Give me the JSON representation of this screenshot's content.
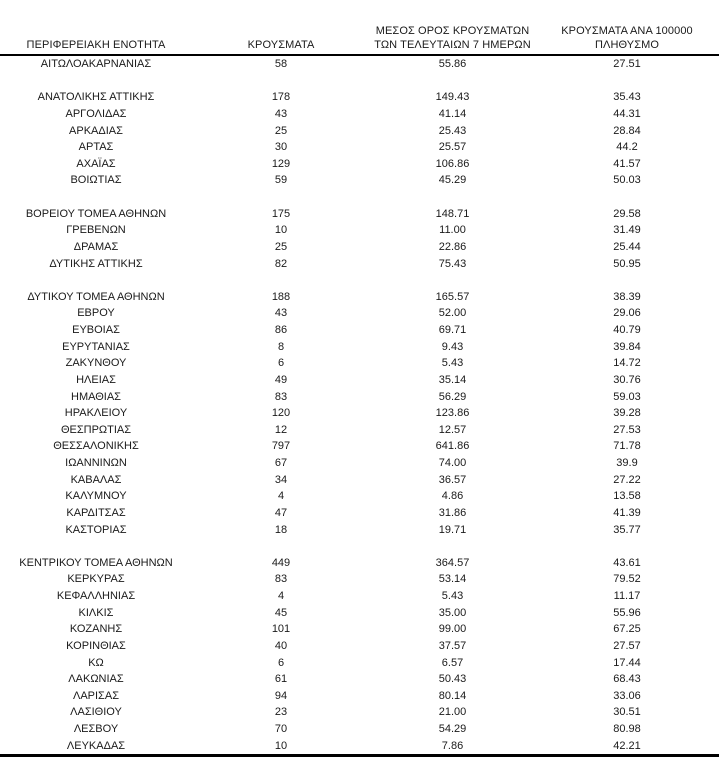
{
  "table": {
    "headers": [
      {
        "lines": [
          "ΠΕΡΙΦΕΡΕΙΑΚΗ ΕΝΟΤΗΤΑ"
        ]
      },
      {
        "lines": [
          "ΚΡΟΥΣΜΑΤΑ"
        ]
      },
      {
        "lines": [
          "ΜΕΣΟΣ ΟΡΟΣ ΚΡΟΥΣΜΑΤΩΝ",
          "ΤΩΝ ΤΕΛΕΥΤΑΙΩΝ 7 ΗΜΕΡΩΝ"
        ]
      },
      {
        "lines": [
          "ΚΡΟΥΣΜΑΤΑ ΑΝΑ 100000",
          "ΠΛΗΘΥΣΜΟ"
        ]
      }
    ],
    "rows": [
      {
        "region": "ΑΙΤΩΛΟΑΚΑΡΝΑΝΙΑΣ",
        "cases": "58",
        "avg7": "55.86",
        "per100k": "27.51"
      },
      {
        "spacer": true
      },
      {
        "region": "ΑΝΑΤΟΛΙΚΗΣ ΑΤΤΙΚΗΣ",
        "cases": "178",
        "avg7": "149.43",
        "per100k": "35.43"
      },
      {
        "region": "ΑΡΓΟΛΙΔΑΣ",
        "cases": "43",
        "avg7": "41.14",
        "per100k": "44.31"
      },
      {
        "region": "ΑΡΚΑΔΙΑΣ",
        "cases": "25",
        "avg7": "25.43",
        "per100k": "28.84"
      },
      {
        "region": "ΑΡΤΑΣ",
        "cases": "30",
        "avg7": "25.57",
        "per100k": "44.2"
      },
      {
        "region": "ΑΧΑΪΑΣ",
        "cases": "129",
        "avg7": "106.86",
        "per100k": "41.57"
      },
      {
        "region": "ΒΟΙΩΤΙΑΣ",
        "cases": "59",
        "avg7": "45.29",
        "per100k": "50.03"
      },
      {
        "spacer": true
      },
      {
        "region": "ΒΟΡΕΙΟΥ ΤΟΜΕΑ ΑΘΗΝΩΝ",
        "cases": "175",
        "avg7": "148.71",
        "per100k": "29.58"
      },
      {
        "region": "ΓΡΕΒΕΝΩΝ",
        "cases": "10",
        "avg7": "11.00",
        "per100k": "31.49"
      },
      {
        "region": "ΔΡΑΜΑΣ",
        "cases": "25",
        "avg7": "22.86",
        "per100k": "25.44"
      },
      {
        "region": "ΔΥΤΙΚΗΣ ΑΤΤΙΚΗΣ",
        "cases": "82",
        "avg7": "75.43",
        "per100k": "50.95"
      },
      {
        "spacer": true
      },
      {
        "region": "ΔΥΤΙΚΟΥ ΤΟΜΕΑ ΑΘΗΝΩΝ",
        "cases": "188",
        "avg7": "165.57",
        "per100k": "38.39"
      },
      {
        "region": "ΕΒΡΟΥ",
        "cases": "43",
        "avg7": "52.00",
        "per100k": "29.06"
      },
      {
        "region": "ΕΥΒΟΙΑΣ",
        "cases": "86",
        "avg7": "69.71",
        "per100k": "40.79"
      },
      {
        "region": "ΕΥΡΥΤΑΝΙΑΣ",
        "cases": "8",
        "avg7": "9.43",
        "per100k": "39.84"
      },
      {
        "region": "ΖΑΚΥΝΘΟΥ",
        "cases": "6",
        "avg7": "5.43",
        "per100k": "14.72"
      },
      {
        "region": "ΗΛΕΙΑΣ",
        "cases": "49",
        "avg7": "35.14",
        "per100k": "30.76"
      },
      {
        "region": "ΗΜΑΘΙΑΣ",
        "cases": "83",
        "avg7": "56.29",
        "per100k": "59.03"
      },
      {
        "region": "ΗΡΑΚΛΕΙΟΥ",
        "cases": "120",
        "avg7": "123.86",
        "per100k": "39.28"
      },
      {
        "region": "ΘΕΣΠΡΩΤΙΑΣ",
        "cases": "12",
        "avg7": "12.57",
        "per100k": "27.53"
      },
      {
        "region": "ΘΕΣΣΑΛΟΝΙΚΗΣ",
        "cases": "797",
        "avg7": "641.86",
        "per100k": "71.78"
      },
      {
        "region": "ΙΩΑΝΝΙΝΩΝ",
        "cases": "67",
        "avg7": "74.00",
        "per100k": "39.9"
      },
      {
        "region": "ΚΑΒΑΛΑΣ",
        "cases": "34",
        "avg7": "36.57",
        "per100k": "27.22"
      },
      {
        "region": "ΚΑΛΥΜΝΟΥ",
        "cases": "4",
        "avg7": "4.86",
        "per100k": "13.58"
      },
      {
        "region": "ΚΑΡΔΙΤΣΑΣ",
        "cases": "47",
        "avg7": "31.86",
        "per100k": "41.39"
      },
      {
        "region": "ΚΑΣΤΟΡΙΑΣ",
        "cases": "18",
        "avg7": "19.71",
        "per100k": "35.77"
      },
      {
        "spacer": true
      },
      {
        "region": "ΚΕΝΤΡΙΚΟΥ ΤΟΜΕΑ ΑΘΗΝΩΝ",
        "cases": "449",
        "avg7": "364.57",
        "per100k": "43.61"
      },
      {
        "region": "ΚΕΡΚΥΡΑΣ",
        "cases": "83",
        "avg7": "53.14",
        "per100k": "79.52"
      },
      {
        "region": "ΚΕΦΑΛΛΗΝΙΑΣ",
        "cases": "4",
        "avg7": "5.43",
        "per100k": "11.17"
      },
      {
        "region": "ΚΙΛΚΙΣ",
        "cases": "45",
        "avg7": "35.00",
        "per100k": "55.96"
      },
      {
        "region": "ΚΟΖΑΝΗΣ",
        "cases": "101",
        "avg7": "99.00",
        "per100k": "67.25"
      },
      {
        "region": "ΚΟΡΙΝΘΙΑΣ",
        "cases": "40",
        "avg7": "37.57",
        "per100k": "27.57"
      },
      {
        "region": "ΚΩ",
        "cases": "6",
        "avg7": "6.57",
        "per100k": "17.44"
      },
      {
        "region": "ΛΑΚΩΝΙΑΣ",
        "cases": "61",
        "avg7": "50.43",
        "per100k": "68.43"
      },
      {
        "region": "ΛΑΡΙΣΑΣ",
        "cases": "94",
        "avg7": "80.14",
        "per100k": "33.06"
      },
      {
        "region": "ΛΑΣΙΘΙΟΥ",
        "cases": "23",
        "avg7": "21.00",
        "per100k": "30.51"
      },
      {
        "region": "ΛΕΣΒΟΥ",
        "cases": "70",
        "avg7": "54.29",
        "per100k": "80.98"
      },
      {
        "region": "ΛΕΥΚΑΔΑΣ",
        "cases": "10",
        "avg7": "7.86",
        "per100k": "42.21"
      }
    ]
  },
  "colors": {
    "text": "#1a1a1a",
    "rule": "#000000",
    "background": "#ffffff"
  }
}
